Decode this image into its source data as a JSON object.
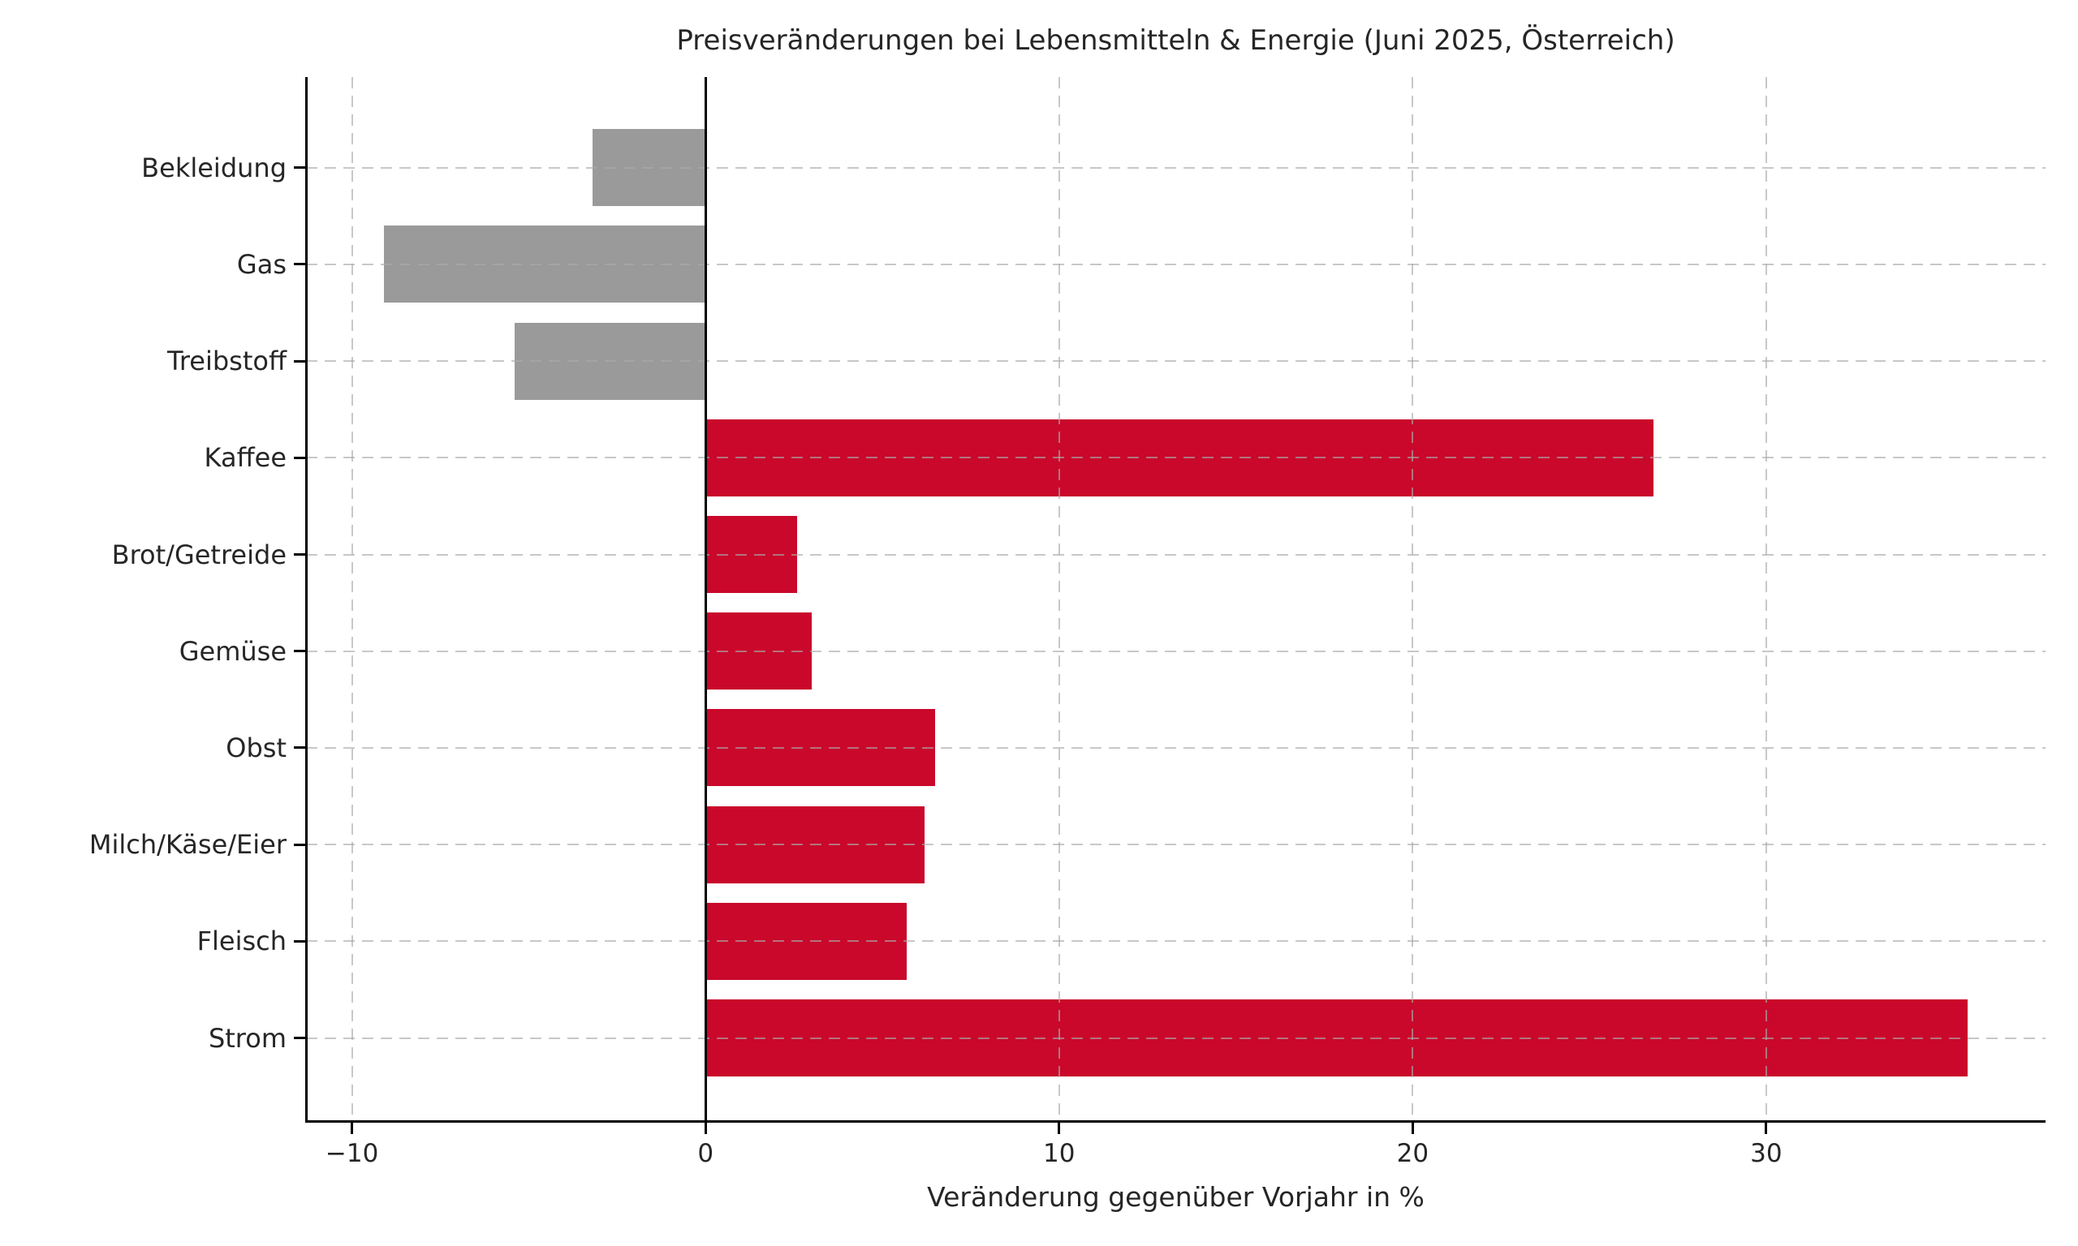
{
  "chart_data": {
    "type": "bar",
    "orientation": "horizontal",
    "title": "Preisveränderungen bei Lebensmitteln & Energie (Juni 2025, Österreich)",
    "xlabel": "Veränderung gegenüber Vorjahr in %",
    "ylabel": "",
    "categories": [
      "Bekleidung",
      "Gas",
      "Treibstoff",
      "Kaffee",
      "Brot/Getreide",
      "Gemüse",
      "Obst",
      "Milch/Käse/Eier",
      "Fleisch",
      "Strom"
    ],
    "values": [
      -3.2,
      -9.1,
      -5.4,
      26.8,
      2.6,
      3.0,
      6.5,
      6.2,
      5.7,
      35.7
    ],
    "xlim": [
      -11.3,
      37.9
    ],
    "xticks": {
      "values": [
        -10,
        0,
        10,
        20,
        30
      ],
      "labels": [
        "−10",
        "0",
        "10",
        "20",
        "30"
      ]
    },
    "grid": true,
    "legend": "none",
    "colors": {
      "positive_bar": "#c9082b",
      "negative_bar": "#9a9a9a",
      "zero_line": "#000000",
      "grid": "#aaaaaa",
      "axis": "#000000",
      "text": "#262626"
    }
  }
}
